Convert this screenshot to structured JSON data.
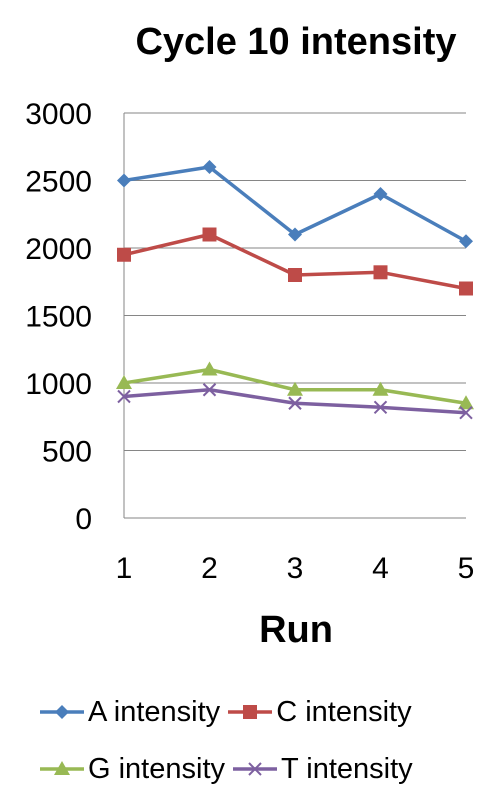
{
  "chart_data": {
    "type": "line",
    "title": "Cycle 10 intensity",
    "xlabel": "Run",
    "ylabel": "",
    "x": [
      1,
      2,
      3,
      4,
      5
    ],
    "ylim": [
      0,
      3000
    ],
    "yticks": [
      0,
      500,
      1000,
      1500,
      2000,
      2500,
      3000
    ],
    "grid": true,
    "legend_position": "bottom",
    "series": [
      {
        "name": "A intensity",
        "values": [
          2500,
          2600,
          2100,
          2400,
          2050
        ],
        "color": "#4a7ebb",
        "marker": "diamond"
      },
      {
        "name": "C intensity",
        "values": [
          1950,
          2100,
          1800,
          1820,
          1700
        ],
        "color": "#be4b48",
        "marker": "square"
      },
      {
        "name": "G intensity",
        "values": [
          1000,
          1100,
          950,
          950,
          850
        ],
        "color": "#98b954",
        "marker": "triangle"
      },
      {
        "name": "T intensity",
        "values": [
          900,
          950,
          850,
          820,
          780
        ],
        "color": "#7d60a0",
        "marker": "x"
      }
    ]
  }
}
